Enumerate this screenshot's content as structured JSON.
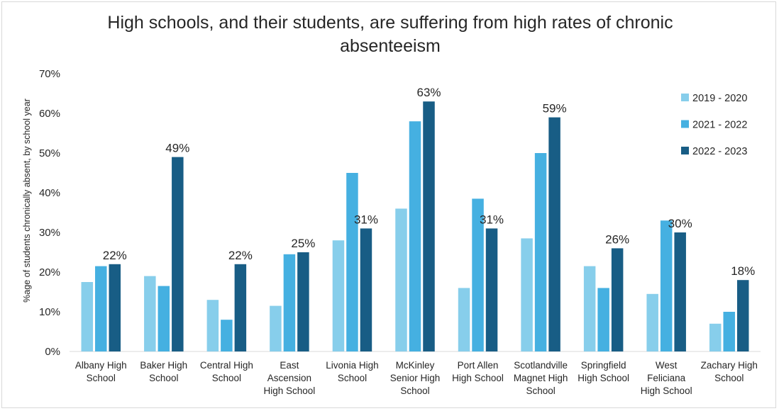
{
  "chart_data": {
    "type": "bar",
    "title": "High schools, and their students, are suffering from high rates of chronic absenteeism",
    "ylabel": "%age of students chronically absent, by school year",
    "xlabel": "",
    "ylim": [
      0,
      70
    ],
    "y_ticks": [
      "0%",
      "10%",
      "20%",
      "30%",
      "40%",
      "50%",
      "60%",
      "70%"
    ],
    "grid": false,
    "legend_position": "right",
    "categories": [
      [
        "Albany High",
        "School"
      ],
      [
        "Baker High",
        "School"
      ],
      [
        "Central High",
        "School"
      ],
      [
        "East",
        "Ascension",
        "High School"
      ],
      [
        "Livonia High",
        "School"
      ],
      [
        "McKinley",
        "Senior High",
        "School"
      ],
      [
        "Port Allen",
        "High School"
      ],
      [
        "Scotlandville",
        "Magnet High",
        "School"
      ],
      [
        "Springfield",
        "High School"
      ],
      [
        "West",
        "Feliciana",
        "High School"
      ],
      [
        "Zachary High",
        "School"
      ]
    ],
    "series": [
      {
        "name": "2019 - 2020",
        "color": "#87ceeb",
        "values": [
          17.5,
          19,
          13,
          11.5,
          28,
          36,
          16,
          28.5,
          21.5,
          14.5,
          7
        ]
      },
      {
        "name": "2021 - 2022",
        "color": "#45b0e1",
        "values": [
          21.5,
          16.5,
          8,
          24.5,
          45,
          58,
          38.5,
          50,
          16,
          33,
          10
        ]
      },
      {
        "name": "2022 - 2023",
        "color": "#185d85",
        "values": [
          22,
          49,
          22,
          25,
          31,
          63,
          31,
          59,
          26,
          30,
          18
        ]
      }
    ],
    "data_labels_series": "2022 - 2023",
    "data_labels": [
      "22%",
      "49%",
      "22%",
      "25%",
      "31%",
      "63%",
      "31%",
      "59%",
      "26%",
      "30%",
      "18%"
    ]
  }
}
